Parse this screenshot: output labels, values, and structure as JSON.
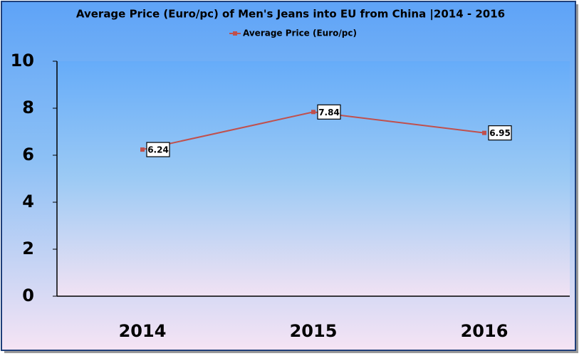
{
  "chart_data": {
    "type": "line",
    "title": "Average Price (Euro/pc) of Men's Jeans into EU from China |2014 - 2016",
    "categories": [
      "2014",
      "2015",
      "2016"
    ],
    "series": [
      {
        "name": "Average Price (Euro/pc)",
        "color": "#c0504d",
        "values": [
          6.24,
          7.84,
          6.95
        ]
      }
    ],
    "ylim": [
      0,
      10
    ],
    "yticks": [
      0,
      2,
      4,
      6,
      8,
      10
    ],
    "grid": false,
    "legend": "top"
  }
}
